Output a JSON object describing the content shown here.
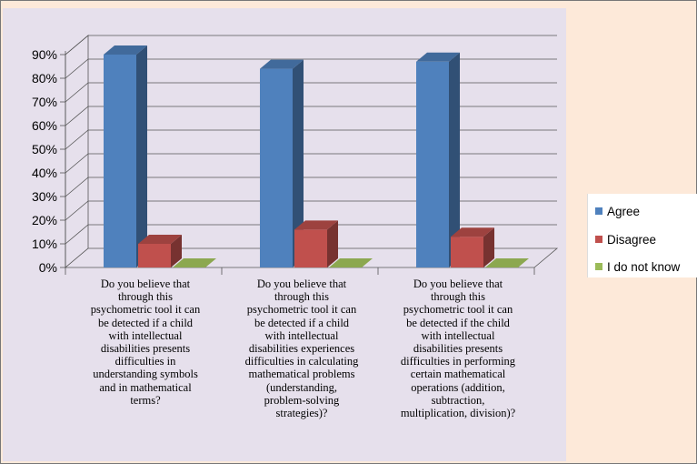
{
  "chart_data": {
    "type": "bar",
    "categories": [
      "Do you believe that\nthrough this\npsychometric tool it can\nbe detected if a child\nwith intellectual\ndisabilities presents\ndifficulties in\nunderstanding symbols\nand in mathematical\nterms?",
      "Do you believe that\nthrough this\npsychometric tool it can\nbe detected if a child\nwith intellectual\ndisabilities experiences\ndifficulties in calculating\nmathematical problems\n(understanding,\nproblem-solving\nstrategies)?",
      "Do you believe that\nthrough this\npsychometric tool it can\nbe detected if the child\nwith intellectual\ndisabilities presents\ndifficulties in performing\ncertain mathematical\noperations (addition,\nsubtraction,\nmultiplication, division)?"
    ],
    "series": [
      {
        "name": "Agree",
        "values": [
          90,
          84,
          87
        ],
        "color": "#4f81bd"
      },
      {
        "name": "Disagree",
        "values": [
          10,
          16,
          13
        ],
        "color": "#c0504d"
      },
      {
        "name": "I do not know",
        "values": [
          0,
          0,
          0
        ],
        "color": "#9bbb59"
      }
    ],
    "y_ticks": [
      "0%",
      "10%",
      "20%",
      "30%",
      "40%",
      "50%",
      "60%",
      "70%",
      "80%",
      "90%"
    ],
    "ylim": [
      0,
      90
    ],
    "grid": true,
    "legend_position": "right",
    "title": "",
    "xlabel": "",
    "ylabel": ""
  }
}
